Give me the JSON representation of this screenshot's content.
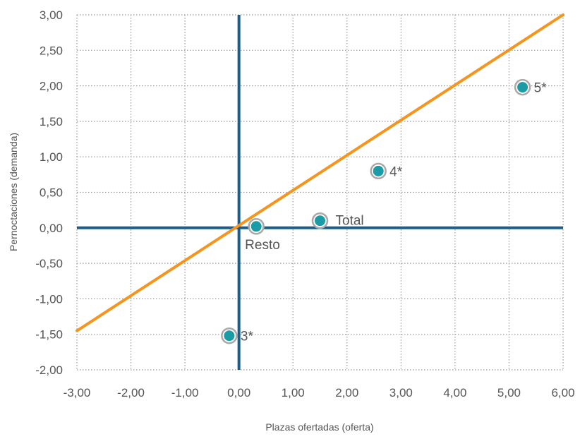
{
  "chart_data": {
    "type": "scatter",
    "title": "",
    "xlabel": "Plazas ofertadas (oferta)",
    "ylabel": "Pernoctaciones (demanda)",
    "xlim": [
      -3,
      6
    ],
    "ylim": [
      -2,
      3
    ],
    "x_ticks": [
      "-3,00",
      "-2,00",
      "-1,00",
      "0,00",
      "1,00",
      "2,00",
      "3,00",
      "4,00",
      "5,00",
      "6,00"
    ],
    "y_ticks": [
      "3,00",
      "2,50",
      "2,00",
      "1,50",
      "1,00",
      "0,50",
      "0,00",
      "-0,50",
      "-1,00",
      "-1,50",
      "-2,00"
    ],
    "x_tick_values": [
      -3,
      -2,
      -1,
      0,
      1,
      2,
      3,
      4,
      5,
      6
    ],
    "y_tick_values": [
      3,
      2.5,
      2,
      1.5,
      1,
      0.5,
      0,
      -0.5,
      -1,
      -1.5,
      -2
    ],
    "grid": true,
    "reference_line": {
      "x": [
        -3,
        6
      ],
      "y": [
        -1.45,
        3.0
      ],
      "color": "#f7941d"
    },
    "axis_lines_color": "#1b5e8c",
    "point_color": "#1a9ba6",
    "points": [
      {
        "label": "5*",
        "x": 5.25,
        "y": 1.98
      },
      {
        "label": "4*",
        "x": 2.58,
        "y": 0.8
      },
      {
        "label": "Total",
        "x": 1.5,
        "y": 0.1
      },
      {
        "label": "Resto",
        "x": 0.32,
        "y": 0.02
      },
      {
        "label": "3*",
        "x": -0.18,
        "y": -1.52
      }
    ]
  }
}
